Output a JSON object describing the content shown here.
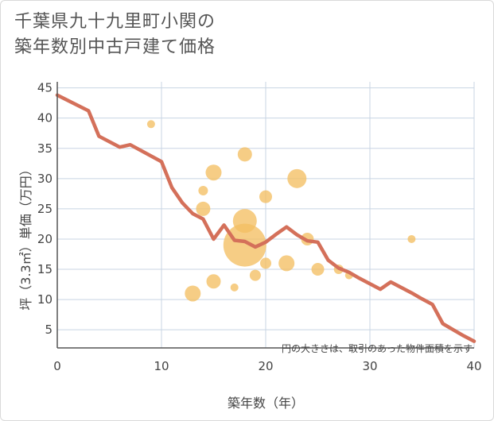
{
  "chart_data": {
    "type": "scatter",
    "title_line1": "千葉県九十九里町小関の",
    "title_line2": "築年数別中古戸建て価格",
    "xlabel": "築年数（年）",
    "ylabel": "坪（3.3㎡）単価（万円）",
    "note": "円の大きさは、取引のあった物件面積を示す",
    "xlim": [
      0,
      40
    ],
    "ylim": [
      2,
      46
    ],
    "x_ticks": [
      0,
      10,
      20,
      30,
      40
    ],
    "y_ticks": [
      5,
      10,
      15,
      20,
      25,
      30,
      35,
      40,
      45
    ],
    "grid": true,
    "colors": {
      "trend": "#d4705a",
      "bubble": "#f3bf63",
      "grid": "#c8d4e3",
      "axis": "#555555"
    },
    "trend_line": {
      "x": [
        0,
        3,
        4,
        6,
        7,
        10,
        11,
        12,
        13,
        14,
        15,
        16,
        17,
        18,
        19,
        20,
        21,
        22,
        23,
        24,
        25,
        26,
        27,
        28,
        29,
        30,
        31,
        32,
        33,
        34,
        35,
        36,
        37,
        38,
        39,
        40
      ],
      "y": [
        43.8,
        41.2,
        37.0,
        35.2,
        35.6,
        32.8,
        28.5,
        26.0,
        24.2,
        23.3,
        20.0,
        22.3,
        19.8,
        19.6,
        18.7,
        19.5,
        20.8,
        22.0,
        20.7,
        19.7,
        19.5,
        16.5,
        15.2,
        14.5,
        13.5,
        12.6,
        11.7,
        12.9,
        12.0,
        11.1,
        10.1,
        9.2,
        6.0,
        5.0,
        4.0,
        3.1
      ]
    },
    "bubbles": [
      {
        "x": 9,
        "y": 39,
        "size": 5
      },
      {
        "x": 13,
        "y": 11,
        "size": 10
      },
      {
        "x": 14,
        "y": 25,
        "size": 9
      },
      {
        "x": 14,
        "y": 28,
        "size": 6
      },
      {
        "x": 15,
        "y": 31,
        "size": 10
      },
      {
        "x": 15,
        "y": 13,
        "size": 9
      },
      {
        "x": 17,
        "y": 12,
        "size": 5
      },
      {
        "x": 18,
        "y": 34,
        "size": 9
      },
      {
        "x": 18,
        "y": 23,
        "size": 15
      },
      {
        "x": 18,
        "y": 19,
        "size": 27
      },
      {
        "x": 19,
        "y": 14,
        "size": 7
      },
      {
        "x": 20,
        "y": 27,
        "size": 8
      },
      {
        "x": 20,
        "y": 16,
        "size": 7
      },
      {
        "x": 22,
        "y": 16,
        "size": 10
      },
      {
        "x": 23,
        "y": 30,
        "size": 12
      },
      {
        "x": 24,
        "y": 20,
        "size": 8
      },
      {
        "x": 25,
        "y": 15,
        "size": 8
      },
      {
        "x": 27,
        "y": 15,
        "size": 6
      },
      {
        "x": 28,
        "y": 14,
        "size": 5
      },
      {
        "x": 34,
        "y": 20,
        "size": 5
      }
    ]
  }
}
